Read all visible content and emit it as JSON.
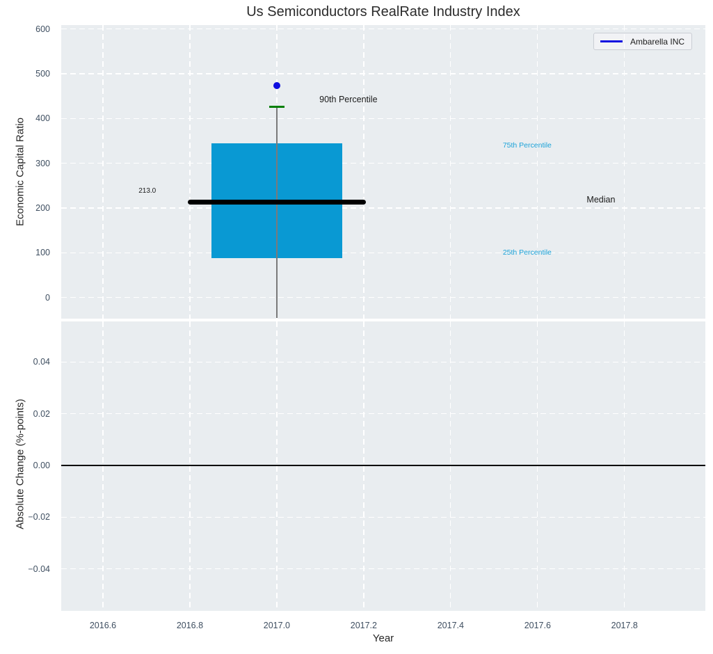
{
  "title": "Us Semiconductors RealRate Industry Index",
  "legend": {
    "label": "Ambarella INC"
  },
  "axes": {
    "x_label": "Year",
    "top_y_label": "Economic Capital Ratio",
    "bottom_y_label": "Absolute Change (%-points)"
  },
  "colors": {
    "panel_bg": "#e9edf0",
    "grid": "#ffffff",
    "box_fill": "#0999d3",
    "median": "#000000",
    "p90_cap": "#068006",
    "outlier": "#0d0de0",
    "whisker": "#7a7a7a",
    "tick_text": "#3e4e60",
    "label_text": "#1a1a1a",
    "percentile_text": "#1ba2d8",
    "legend_line": "#0d0de0",
    "zero_line": "#000000"
  },
  "chart_data": {
    "type": "box",
    "title": "Us Semiconductors RealRate Industry Index",
    "xlabel": "Year",
    "grid": "white-dashed",
    "legend_position": "upper right",
    "x": {
      "lim": [
        2016.504,
        2017.986
      ],
      "ticks": [
        {
          "v": 2016.6,
          "label": "2016.6"
        },
        {
          "v": 2016.8,
          "label": "2016.8"
        },
        {
          "v": 2017.0,
          "label": "2017.0"
        },
        {
          "v": 2017.2,
          "label": "2017.2"
        },
        {
          "v": 2017.4,
          "label": "2017.4"
        },
        {
          "v": 2017.6,
          "label": "2017.6"
        },
        {
          "v": 2017.8,
          "label": "2017.8"
        }
      ]
    },
    "panels": [
      {
        "name": "economic-capital-ratio",
        "ylabel": "Economic Capital Ratio",
        "ylim": [
          -47,
          609
        ],
        "yticks": [
          {
            "v": 0,
            "label": "0"
          },
          {
            "v": 100,
            "label": "100"
          },
          {
            "v": 200,
            "label": "200"
          },
          {
            "v": 300,
            "label": "300"
          },
          {
            "v": 400,
            "label": "400"
          },
          {
            "v": 500,
            "label": "500"
          },
          {
            "v": 600,
            "label": "600"
          }
        ],
        "series": [
          {
            "name": "Ambarella INC",
            "x": 2017.0,
            "median": 213.0,
            "median_label": "213.0",
            "q1": 88,
            "q3": 345,
            "p90": 427,
            "whisker_low": -46,
            "outlier_y": 474,
            "box_halfwidth": 0.151,
            "median_halfwidth": 0.205,
            "cap_halfwidth": 0.018
          }
        ],
        "annotations": [
          {
            "text": "90th Percentile",
            "x": 2017.098,
            "y": 441,
            "color_key": "label_text",
            "size": 12.5
          },
          {
            "text": "75th Percentile",
            "x": 2017.52,
            "y": 339,
            "color_key": "percentile_text",
            "size": 10.5
          },
          {
            "text": "Median",
            "x": 2017.713,
            "y": 217,
            "color_key": "label_text",
            "size": 12.5
          },
          {
            "text": "25th Percentile",
            "x": 2017.52,
            "y": 100,
            "color_key": "percentile_text",
            "size": 10.5
          },
          {
            "text": "213.0",
            "x": 2016.682,
            "y": 237,
            "color_key": "label_text",
            "size": 10
          }
        ]
      },
      {
        "name": "absolute-change",
        "ylabel": "Absolute Change (%-points)",
        "ylim": [
          -0.0562,
          0.0557
        ],
        "yticks": [
          {
            "v": 0.04,
            "label": "0.04"
          },
          {
            "v": 0.02,
            "label": "0.02"
          },
          {
            "v": 0.0,
            "label": "0.00"
          },
          {
            "v": -0.02,
            "label": "−0.02"
          },
          {
            "v": -0.04,
            "label": "−0.04"
          }
        ],
        "zero_line": 0.0
      }
    ]
  }
}
